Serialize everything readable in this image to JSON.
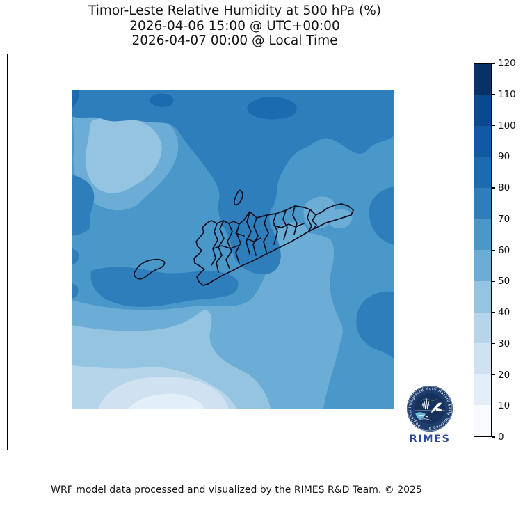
{
  "title": {
    "line1": "Timor-Leste Relative Humidity at 500 hPa (%)",
    "line2": "2026-04-06 15:00 @ UTC+00:00",
    "line3": "2026-04-07 00:00 @ Local Time"
  },
  "footer": {
    "credit": "WRF model data processed and visualized by the RIMES R&D Team. © 2025"
  },
  "logo": {
    "text": "RIMES",
    "arc_text": "Regional Integrated Multi-Hazard Early Warning System"
  },
  "colorbar": {
    "orientation": "vertical",
    "min": 0,
    "max": 120,
    "step": 10,
    "ticks": [
      0,
      10,
      20,
      30,
      40,
      50,
      60,
      70,
      80,
      90,
      100,
      110,
      120
    ],
    "palette": [
      "#f7fbff",
      "#e2eef8",
      "#d0e1f2",
      "#b6d4ea",
      "#94c4df",
      "#6badd5",
      "#4a98c9",
      "#2e7ebc",
      "#1b6bb0",
      "#0f5aa3",
      "#084990",
      "#08306b"
    ]
  },
  "chart_data": {
    "type": "heatmap",
    "subtype": "filled-contour-map",
    "title": "Timor-Leste Relative Humidity at 500 hPa (%)",
    "timestamp_utc": "2026-04-06 15:00 @ UTC+00:00",
    "timestamp_local": "2026-04-07 00:00 @ Local Time",
    "region": "Timor-Leste",
    "variable": "Relative Humidity",
    "level": "500 hPa",
    "units": "%",
    "colormap": "Blues",
    "value_range": [
      0,
      120
    ],
    "contour_interval": 10,
    "legend_position": "right",
    "grid": false,
    "observed_bands": [
      {
        "area": "northern offshore band",
        "value_range": "70-80"
      },
      {
        "area": "local maximum ellipse, north-center offshore",
        "value_range": "80-90"
      },
      {
        "area": "small local maximum, north-west offshore",
        "value_range": "80-90"
      },
      {
        "area": "north-west light patch",
        "value_range": "40-60"
      },
      {
        "area": "central tongue reaching island interior",
        "value_range": "70-80"
      },
      {
        "area": "island west and central interior",
        "value_range": "60-80"
      },
      {
        "area": "island east (Baucau / east tip patches)",
        "value_range": "50-70"
      },
      {
        "area": "band south of island",
        "value_range": "50-60"
      },
      {
        "area": "south-west offshore gradient",
        "value_range": "10-50"
      },
      {
        "area": "right-edge local maxima (two blobs)",
        "value_range": "70-80"
      },
      {
        "area": "south-east offshore",
        "value_range": "60-70"
      }
    ],
    "overlays": [
      "Timor-Leste municipality boundaries",
      "Atauro island outline",
      "small south-west island outline"
    ]
  }
}
